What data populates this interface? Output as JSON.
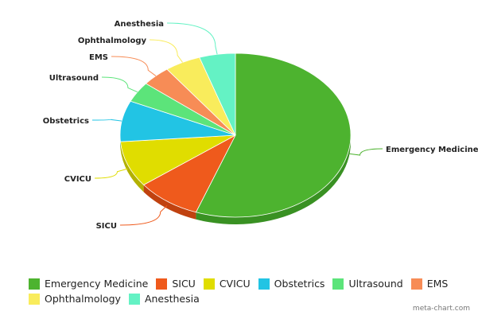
{
  "chart_data": {
    "type": "pie",
    "categories": [
      "Emergency Medicine",
      "SICU",
      "CVICU",
      "Obstetrics",
      "Ultrasound",
      "EMS",
      "Ophthalmology",
      "Anesthesia"
    ],
    "values": [
      55,
      9,
      9,
      8,
      4,
      4,
      5,
      5
    ],
    "colors": [
      "#4db32f",
      "#ef5a1c",
      "#e0dd00",
      "#22c4e4",
      "#5ce47a",
      "#f78c56",
      "#f9ec5c",
      "#64f2c4"
    ],
    "edge_colors": [
      "#399123",
      "#c04210",
      "#b3b100",
      "#1896b0",
      "#3fb85a",
      "#c8693b",
      "#cfc23d",
      "#45c79c"
    ],
    "legend_position": "bottom",
    "title": ""
  },
  "legend_rows": [
    [
      {
        "label": "Emergency Medicine",
        "color": "#4db32f"
      },
      {
        "label": "SICU",
        "color": "#ef5a1c"
      },
      {
        "label": "CVICU",
        "color": "#e0dd00"
      },
      {
        "label": "Obstetrics",
        "color": "#22c4e4"
      },
      {
        "label": "Ultrasound",
        "color": "#5ce47a"
      },
      {
        "label": "EMS",
        "color": "#f78c56"
      }
    ],
    [
      {
        "label": "Ophthalmology",
        "color": "#f9ec5c"
      },
      {
        "label": "Anesthesia",
        "color": "#64f2c4"
      }
    ]
  ],
  "watermark": "meta-chart.com"
}
